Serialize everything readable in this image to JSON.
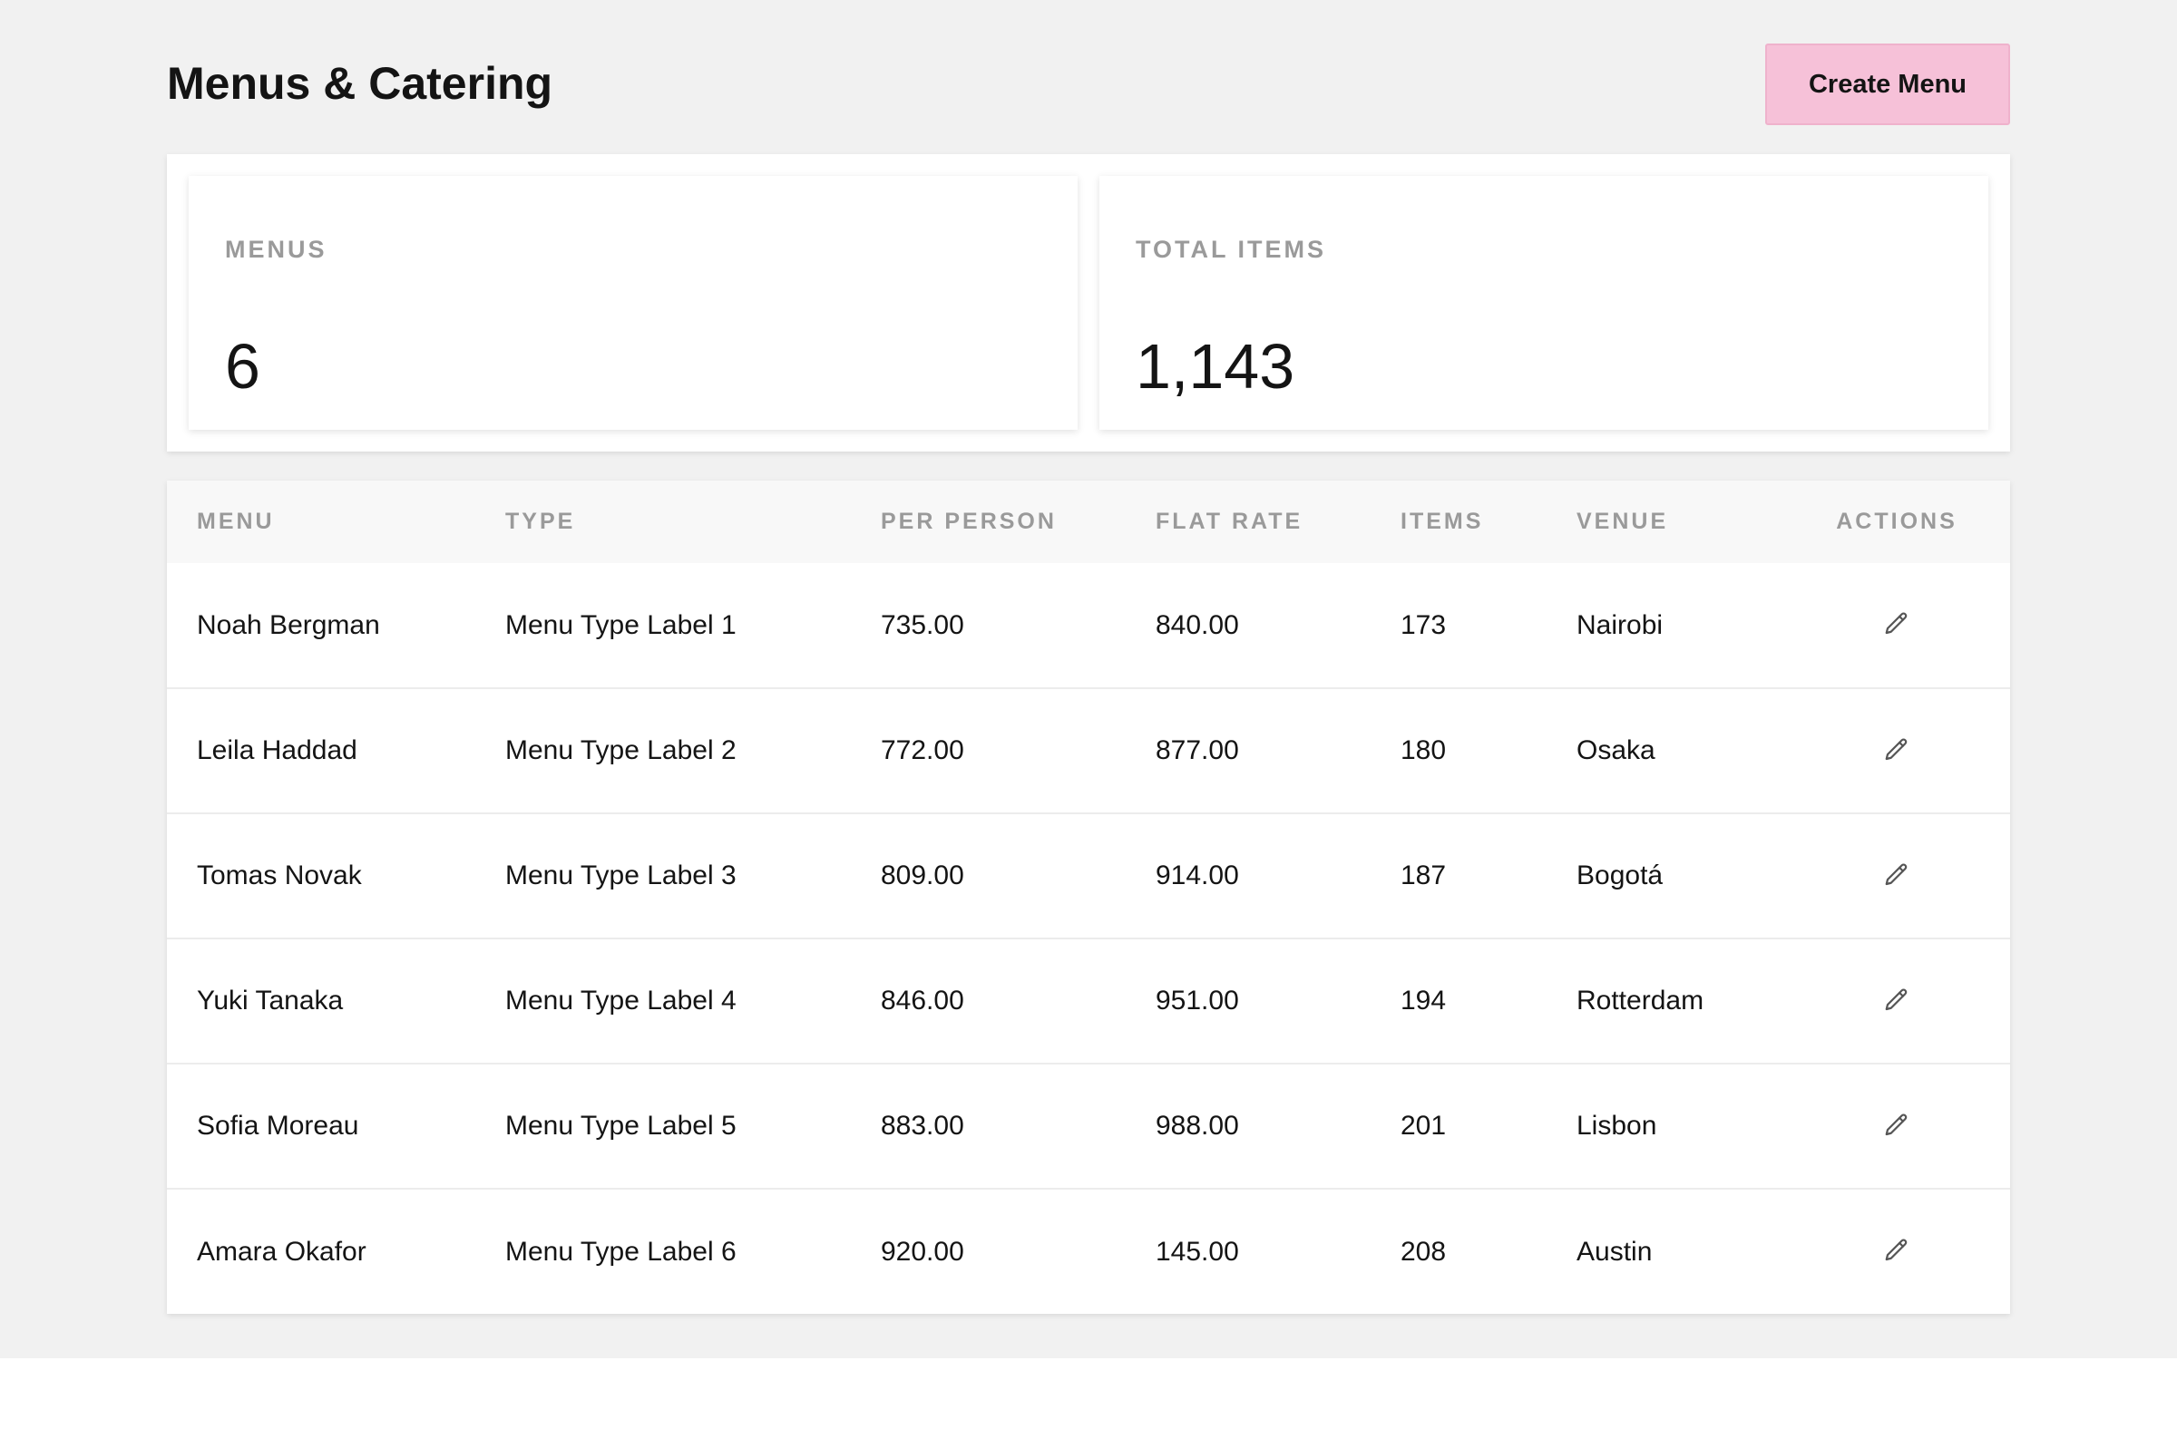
{
  "header": {
    "title": "Menus & Catering",
    "create_button_label": "Create Menu"
  },
  "stats": [
    {
      "label": "MENUS",
      "value": "6"
    },
    {
      "label": "TOTAL ITEMS",
      "value": "1,143"
    }
  ],
  "table": {
    "columns": [
      "MENU",
      "TYPE",
      "PER PERSON",
      "FLAT RATE",
      "ITEMS",
      "VENUE",
      "ACTIONS"
    ],
    "rows": [
      {
        "menu": "Noah Bergman",
        "type": "Menu Type Label 1",
        "per_person": "735.00",
        "flat_rate": "840.00",
        "items": "173",
        "venue": "Nairobi",
        "action_icon": "pencil-icon"
      },
      {
        "menu": "Leila Haddad",
        "type": "Menu Type Label 2",
        "per_person": "772.00",
        "flat_rate": "877.00",
        "items": "180",
        "venue": "Osaka",
        "action_icon": "pencil-icon"
      },
      {
        "menu": "Tomas Novak",
        "type": "Menu Type Label 3",
        "per_person": "809.00",
        "flat_rate": "914.00",
        "items": "187",
        "venue": "Bogotá",
        "action_icon": "pencil-icon"
      },
      {
        "menu": "Yuki Tanaka",
        "type": "Menu Type Label 4",
        "per_person": "846.00",
        "flat_rate": "951.00",
        "items": "194",
        "venue": "Rotterdam",
        "action_icon": "pencil-icon"
      },
      {
        "menu": "Sofia Moreau",
        "type": "Menu Type Label 5",
        "per_person": "883.00",
        "flat_rate": "988.00",
        "items": "201",
        "venue": "Lisbon",
        "action_icon": "pencil-icon"
      },
      {
        "menu": "Amara Okafor",
        "type": "Menu Type Label 6",
        "per_person": "920.00",
        "flat_rate": "145.00",
        "items": "208",
        "venue": "Austin",
        "action_icon": "pencil-icon"
      }
    ]
  },
  "colors": {
    "page_background": "#f1f1f1",
    "accent_button": "#f6c1d8",
    "header_text_muted": "#9a9a9a"
  }
}
